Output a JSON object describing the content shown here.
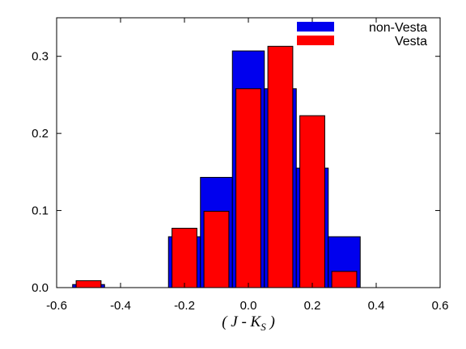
{
  "chart_data": {
    "type": "bar",
    "xlabel": {
      "main": "( J - K",
      "sub": "S",
      "close": " )"
    },
    "ylabel": "",
    "xlim": [
      -0.6,
      0.6
    ],
    "ylim": [
      0,
      0.35
    ],
    "xticks": [
      -0.6,
      -0.4,
      -0.2,
      0.0,
      0.2,
      0.4,
      0.6
    ],
    "xtick_labels": [
      "-0.6",
      "-0.4",
      "-0.2",
      "0.0",
      "0.2",
      "0.4",
      "0.6"
    ],
    "yticks": [
      0,
      0.1,
      0.2,
      0.3
    ],
    "ytick_labels": [
      "0.0",
      "0.1",
      "0.2",
      "0.3"
    ],
    "legend_position": "top-right",
    "bin_width": 0.1,
    "series": [
      {
        "name": "non-Vesta",
        "color": "#0000ee",
        "x": [
          -0.5,
          -0.2,
          -0.1,
          0.0,
          0.1,
          0.2,
          0.3
        ],
        "values": [
          0.004,
          0.066,
          0.143,
          0.307,
          0.258,
          0.155,
          0.066
        ]
      },
      {
        "name": "Vesta",
        "color": "#ff0000",
        "x": [
          -0.5,
          -0.2,
          -0.1,
          0.0,
          0.1,
          0.2,
          0.3
        ],
        "values": [
          0.009,
          0.077,
          0.099,
          0.258,
          0.313,
          0.223,
          0.021
        ]
      }
    ]
  }
}
